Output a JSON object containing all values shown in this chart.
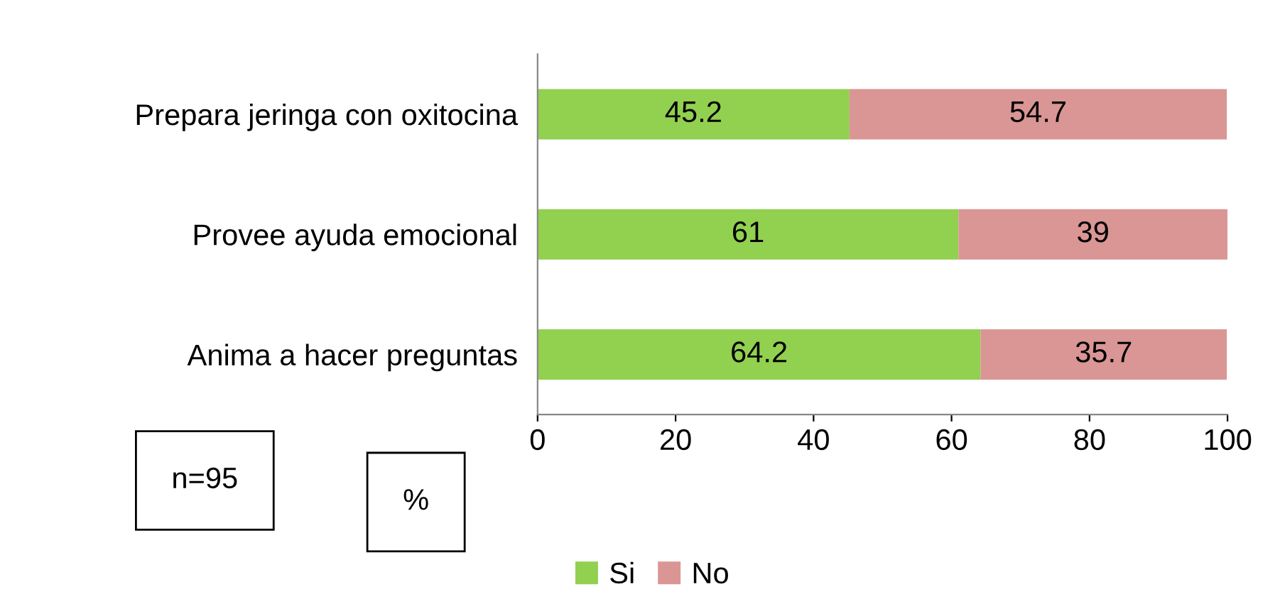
{
  "chart_data": {
    "type": "bar",
    "orientation": "horizontal",
    "stacked": true,
    "categories": [
      "Prepara jeringa con oxitocina",
      "Provee ayuda emocional",
      "Anima a hacer preguntas"
    ],
    "series": [
      {
        "name": "Si",
        "color": "#92d050",
        "values": [
          45.2,
          61,
          64.2
        ]
      },
      {
        "name": "No",
        "color": "#d99694",
        "values": [
          54.7,
          39,
          35.7
        ]
      }
    ],
    "xlim": [
      0,
      100
    ],
    "xticks": [
      0,
      20,
      40,
      60,
      80,
      100
    ],
    "grid": false,
    "legend": "bottom",
    "data_labels": true,
    "annotations": [
      "n=95",
      "%"
    ]
  }
}
